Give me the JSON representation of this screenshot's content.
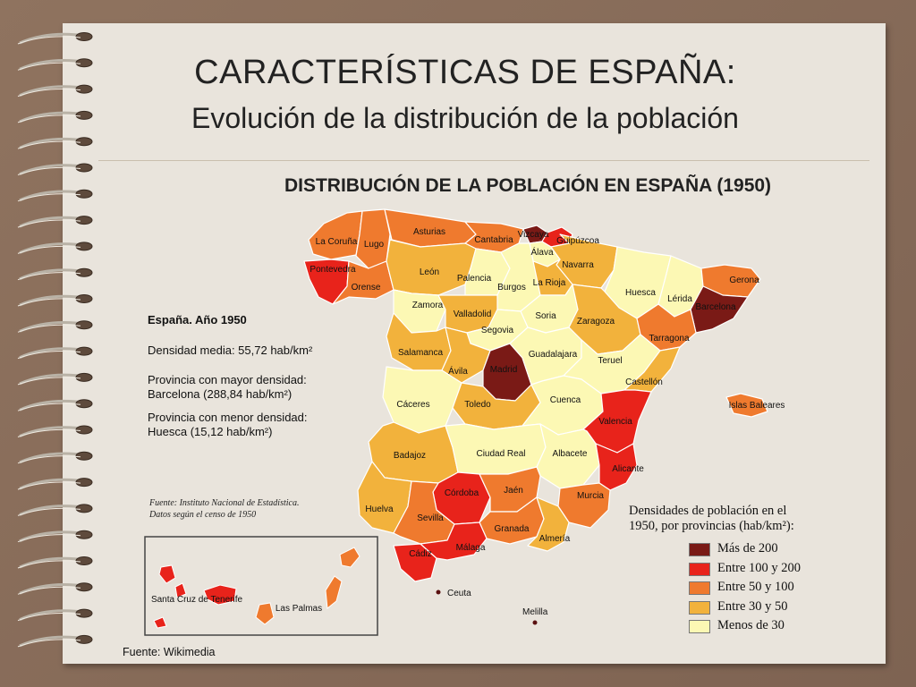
{
  "slide": {
    "title": "CARACTERÍSTICAS DE ESPAÑA:",
    "subtitle": "Evolución de la distribución de la población",
    "footer": "Fuente: Wikimedia"
  },
  "map": {
    "title": "DISTRIBUCIÓN DE LA POBLACIÓN EN ESPAÑA (1950)",
    "info": {
      "heading": "España. Año 1950",
      "density_avg": "Densidad media: 55,72 hab/km²",
      "max_label": "Provincia con mayor densidad:",
      "max_value": "Barcelona (288,84 hab/km²)",
      "min_label": "Provincia con menor densidad:",
      "min_value": "Huesca (15,12 hab/km²)"
    },
    "source": [
      "Fuente: Instituto Nacional de Estadística.",
      "Datos según el censo de 1950"
    ],
    "legend": {
      "title": [
        "Densidades de población en el",
        "1950, por provincias (hab/km²):"
      ],
      "items": [
        {
          "label": "Más de 200",
          "color": "#7a1a16"
        },
        {
          "label": "Entre 100 y 200",
          "color": "#e8231b"
        },
        {
          "label": "Entre 50 y 100",
          "color": "#ef7a2e"
        },
        {
          "label": "Entre 30 y 50",
          "color": "#f2b23c"
        },
        {
          "label": "Menos de 30",
          "color": "#fcf8b4"
        }
      ]
    },
    "provinces": [
      {
        "name": "La Coruña",
        "class": 2
      },
      {
        "name": "Lugo",
        "class": 2
      },
      {
        "name": "Asturias",
        "class": 2
      },
      {
        "name": "Cantabria",
        "class": 2
      },
      {
        "name": "Vizcaya",
        "class": 0
      },
      {
        "name": "Guipúzcoa",
        "class": 1
      },
      {
        "name": "Álava",
        "class": 4
      },
      {
        "name": "Navarra",
        "class": 3
      },
      {
        "name": "Pontevedra",
        "class": 1
      },
      {
        "name": "Orense",
        "class": 2
      },
      {
        "name": "León",
        "class": 3
      },
      {
        "name": "Palencia",
        "class": 4
      },
      {
        "name": "Burgos",
        "class": 4
      },
      {
        "name": "La Rioja",
        "class": 3
      },
      {
        "name": "Huesca",
        "class": 4
      },
      {
        "name": "Lérida",
        "class": 4
      },
      {
        "name": "Gerona",
        "class": 2
      },
      {
        "name": "Barcelona",
        "class": 0
      },
      {
        "name": "Zamora",
        "class": 4
      },
      {
        "name": "Valladolid",
        "class": 3
      },
      {
        "name": "Soria",
        "class": 4
      },
      {
        "name": "Zaragoza",
        "class": 3
      },
      {
        "name": "Tarragona",
        "class": 2
      },
      {
        "name": "Segovia",
        "class": 4
      },
      {
        "name": "Salamanca",
        "class": 3
      },
      {
        "name": "Ávila",
        "class": 3
      },
      {
        "name": "Madrid",
        "class": 0
      },
      {
        "name": "Guadalajara",
        "class": 4
      },
      {
        "name": "Teruel",
        "class": 4
      },
      {
        "name": "Castellón",
        "class": 3
      },
      {
        "name": "Cáceres",
        "class": 4
      },
      {
        "name": "Toledo",
        "class": 3
      },
      {
        "name": "Cuenca",
        "class": 4
      },
      {
        "name": "Valencia",
        "class": 1
      },
      {
        "name": "Islas Baleares",
        "class": 2
      },
      {
        "name": "Badajoz",
        "class": 3
      },
      {
        "name": "Ciudad Real",
        "class": 4
      },
      {
        "name": "Albacete",
        "class": 4
      },
      {
        "name": "Alicante",
        "class": 1
      },
      {
        "name": "Córdoba",
        "class": 1
      },
      {
        "name": "Jaén",
        "class": 2
      },
      {
        "name": "Murcia",
        "class": 2
      },
      {
        "name": "Huelva",
        "class": 3
      },
      {
        "name": "Sevilla",
        "class": 2
      },
      {
        "name": "Granada",
        "class": 2
      },
      {
        "name": "Almería",
        "class": 3
      },
      {
        "name": "Cádiz",
        "class": 1
      },
      {
        "name": "Málaga",
        "class": 1
      },
      {
        "name": "Ceuta",
        "class": null
      },
      {
        "name": "Melilla",
        "class": null
      },
      {
        "name": "Santa Cruz de Tenerife",
        "class": 1
      },
      {
        "name": "Las Palmas",
        "class": 2
      }
    ]
  }
}
